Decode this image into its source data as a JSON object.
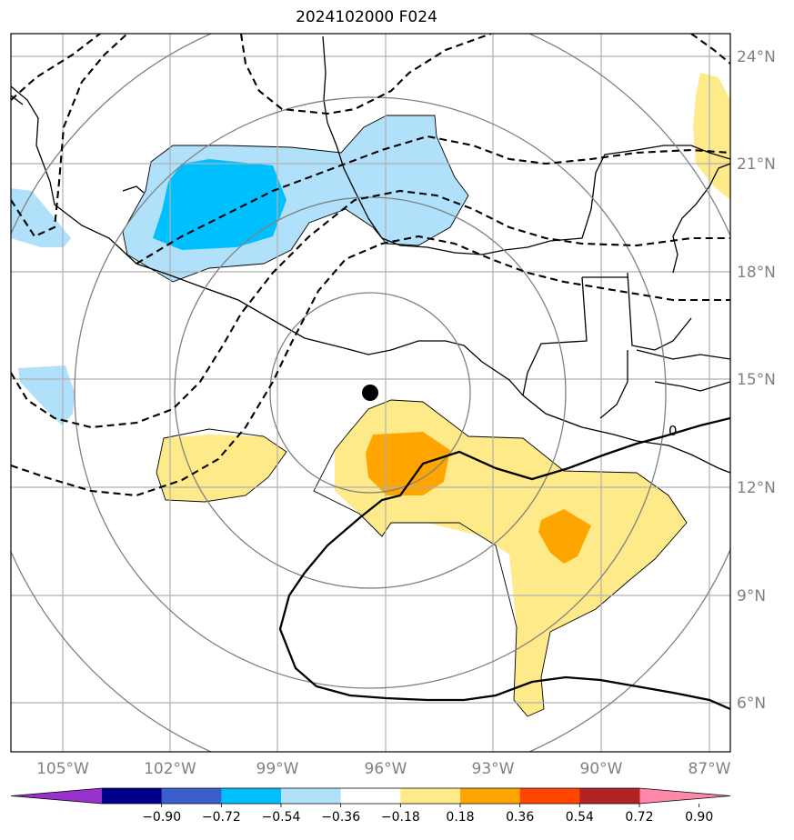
{
  "title": "2024102000 F024",
  "lon_labels": [
    "105°W",
    "102°W",
    "99°W",
    "96°W",
    "93°W",
    "90°W",
    "87°W"
  ],
  "lat_labels": [
    "24°N",
    "21°N",
    "18°N",
    "15°N",
    "12°N",
    "9°N",
    "6°N"
  ],
  "contour_label": "0",
  "colorbar": {
    "colors": [
      "#9932cc",
      "#00008b",
      "#3a5fcd",
      "#00bfff",
      "#b0e0fa",
      "#ffffff",
      "#ffea8a",
      "#ffa500",
      "#ff4500",
      "#b22222",
      "#ff88aa"
    ],
    "tick_labels": [
      "−0.90",
      "−0.72",
      "−0.54",
      "−0.36",
      "−0.18",
      "0.18",
      "0.36",
      "0.54",
      "0.72",
      "0.90"
    ]
  },
  "colors": {
    "light_blue": "#b0e0fa",
    "blue": "#00bfff",
    "light_yellow": "#ffea8a",
    "orange": "#ffa500",
    "grid": "#b0b0b0",
    "ring": "#808080"
  }
}
